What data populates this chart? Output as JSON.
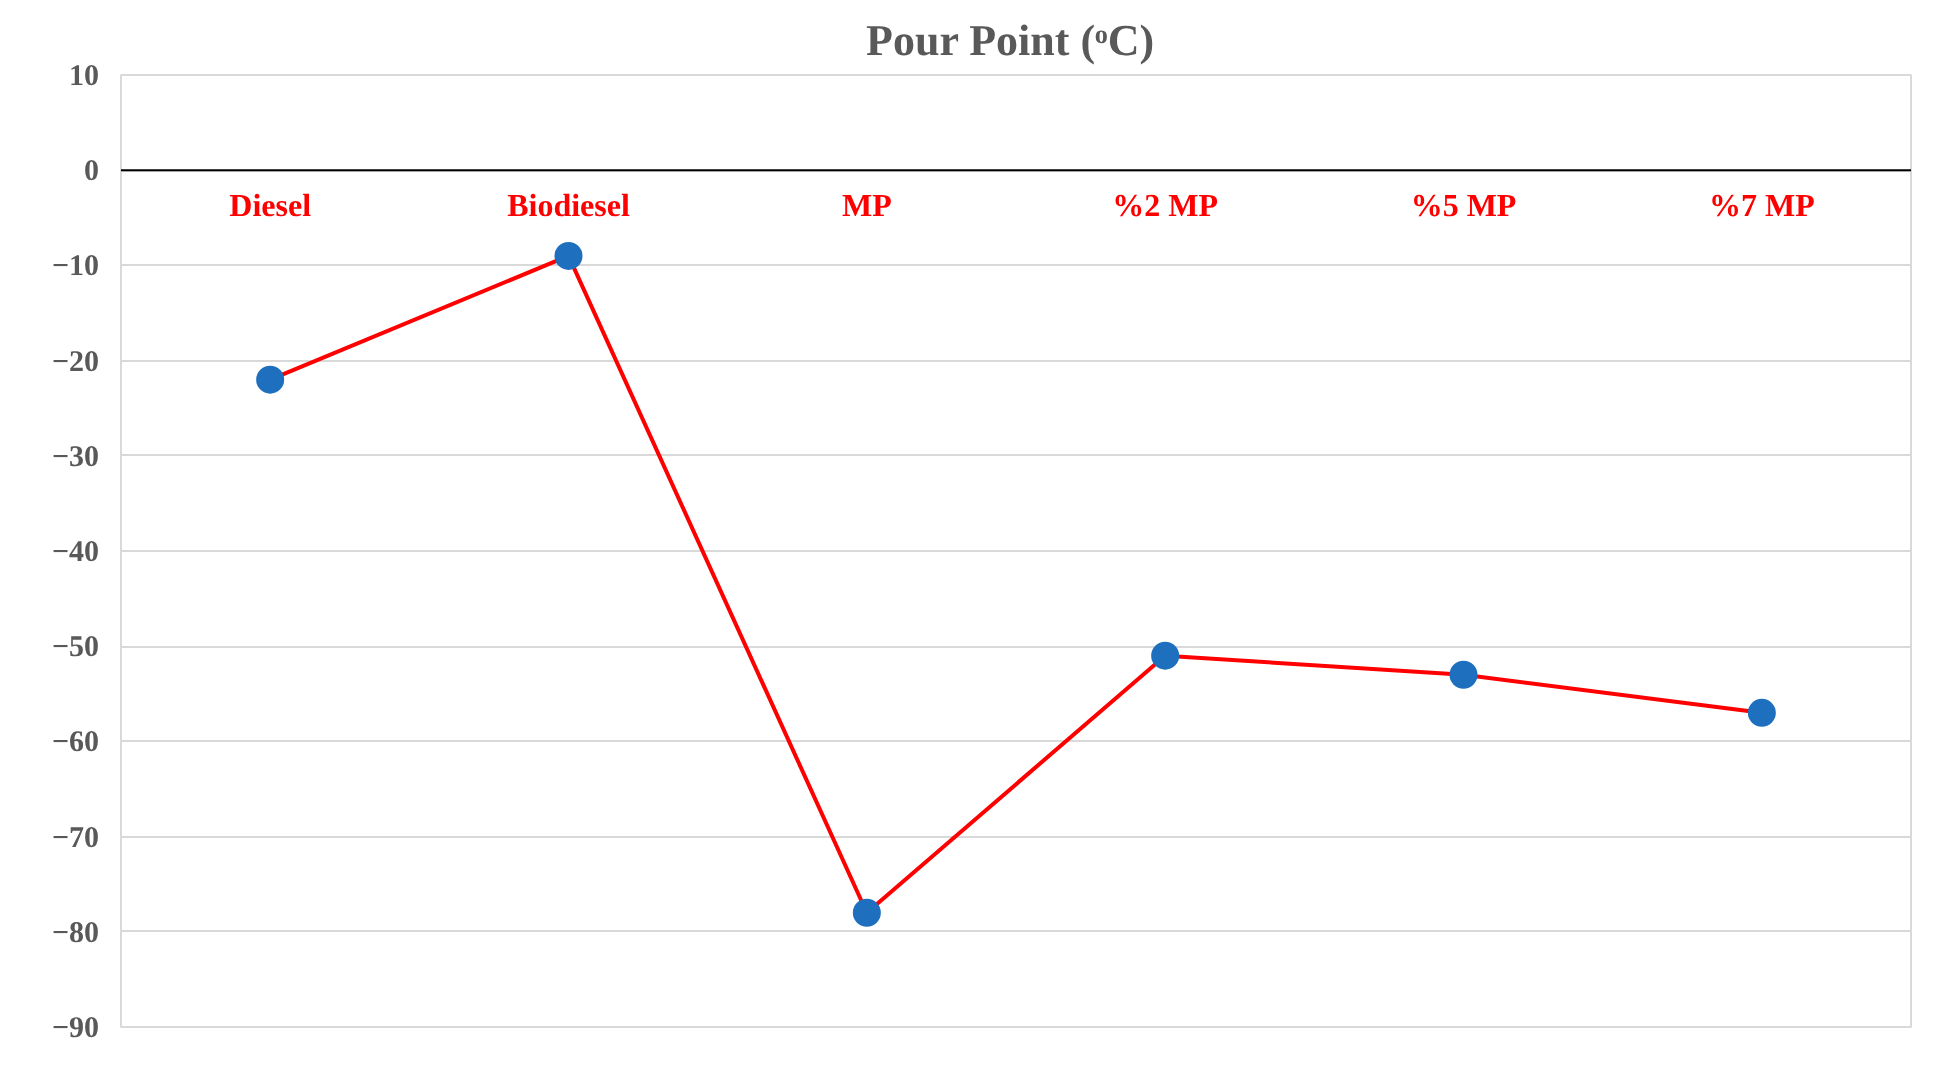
{
  "chart_data": {
    "type": "line",
    "title": "Pour Point  (ᵒC)",
    "categories": [
      "Diesel",
      "Biodiesel",
      "MP",
      "%2 MP",
      "%5 MP",
      "%7 MP"
    ],
    "series": [
      {
        "color": "#ff0000",
        "colors": [
          "#1f6fbf",
          "#1f6fbf",
          "#1f6fbf",
          "#1f6fbf",
          "#1f6fbf",
          "#1f6fbf"
        ],
        "values": [
          -22,
          -9,
          -78,
          -51,
          -53,
          -57
        ]
      }
    ],
    "ylim": [
      -90,
      10
    ],
    "yticks": [
      10,
      0,
      -10,
      -20,
      -30,
      -40,
      -50,
      -60,
      -70,
      -80,
      -90
    ],
    "grid": "y",
    "marker": "circle",
    "line_style": "solid"
  }
}
